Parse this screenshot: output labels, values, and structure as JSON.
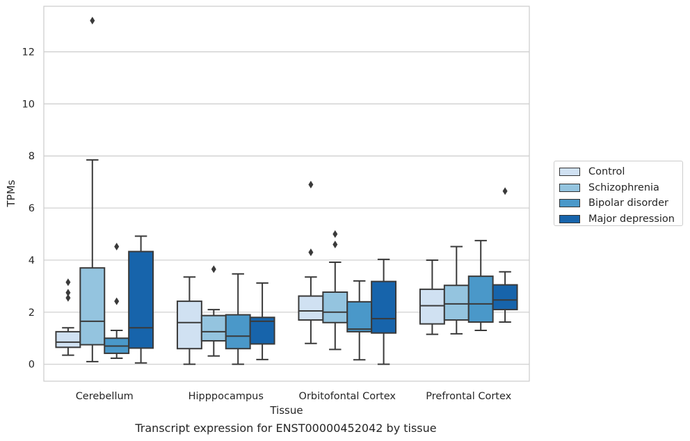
{
  "caption": "Transcript expression for ENST00000452042 by tissue",
  "chart_data": {
    "type": "boxplot",
    "title": "",
    "xlabel": "Tissue",
    "ylabel": "TPMs",
    "ylim": [
      -0.65,
      13.75
    ],
    "yticks": [
      0,
      2,
      4,
      6,
      8,
      10,
      12
    ],
    "grid": true,
    "legend_position": "right",
    "categories": [
      "Cerebellum",
      "Hipppocampus",
      "Orbitofontal Cortex",
      "Prefrontal Cortex"
    ],
    "series": [
      {
        "name": "Control",
        "color": "#d0e1f2",
        "boxes": [
          {
            "whislo": 0.35,
            "q1": 0.65,
            "med": 0.85,
            "q3": 1.25,
            "whishi": 1.4,
            "fliers": [
              2.55,
              2.75,
              3.15
            ]
          },
          {
            "whislo": 0.0,
            "q1": 0.6,
            "med": 1.6,
            "q3": 2.42,
            "whishi": 3.35,
            "fliers": []
          },
          {
            "whislo": 0.8,
            "q1": 1.7,
            "med": 2.05,
            "q3": 2.62,
            "whishi": 3.35,
            "fliers": [
              4.3,
              6.9
            ]
          },
          {
            "whislo": 1.15,
            "q1": 1.55,
            "med": 2.25,
            "q3": 2.88,
            "whishi": 4.0,
            "fliers": []
          }
        ]
      },
      {
        "name": "Schizophrenia",
        "color": "#94c4df",
        "boxes": [
          {
            "whislo": 0.1,
            "q1": 0.75,
            "med": 1.65,
            "q3": 3.7,
            "whishi": 7.85,
            "fliers": [
              13.2
            ]
          },
          {
            "whislo": 0.32,
            "q1": 0.9,
            "med": 1.25,
            "q3": 1.87,
            "whishi": 2.1,
            "fliers": [
              3.65
            ]
          },
          {
            "whislo": 0.57,
            "q1": 1.6,
            "med": 2.0,
            "q3": 2.77,
            "whishi": 3.92,
            "fliers": [
              4.6,
              5.0
            ]
          },
          {
            "whislo": 1.17,
            "q1": 1.7,
            "med": 2.32,
            "q3": 3.03,
            "whishi": 4.52,
            "fliers": []
          }
        ]
      },
      {
        "name": "Bipolar disorder",
        "color": "#4a98c9",
        "boxes": [
          {
            "whislo": 0.23,
            "q1": 0.42,
            "med": 0.7,
            "q3": 1.0,
            "whishi": 1.3,
            "fliers": [
              2.42,
              4.52
            ]
          },
          {
            "whislo": 0.0,
            "q1": 0.6,
            "med": 1.08,
            "q3": 1.9,
            "whishi": 3.47,
            "fliers": []
          },
          {
            "whislo": 0.17,
            "q1": 1.25,
            "med": 1.35,
            "q3": 2.4,
            "whishi": 3.2,
            "fliers": []
          },
          {
            "whislo": 1.3,
            "q1": 1.62,
            "med": 2.32,
            "q3": 3.38,
            "whishi": 4.75,
            "fliers": []
          }
        ]
      },
      {
        "name": "Major depression",
        "color": "#1764ab",
        "boxes": [
          {
            "whislo": 0.05,
            "q1": 0.62,
            "med": 1.4,
            "q3": 4.33,
            "whishi": 4.92,
            "fliers": []
          },
          {
            "whislo": 0.18,
            "q1": 0.78,
            "med": 1.65,
            "q3": 1.8,
            "whishi": 3.12,
            "fliers": []
          },
          {
            "whislo": 0.0,
            "q1": 1.2,
            "med": 1.75,
            "q3": 3.18,
            "whishi": 4.03,
            "fliers": []
          },
          {
            "whislo": 1.62,
            "q1": 2.1,
            "med": 2.47,
            "q3": 3.05,
            "whishi": 3.55,
            "fliers": [
              6.65
            ]
          }
        ]
      }
    ]
  }
}
